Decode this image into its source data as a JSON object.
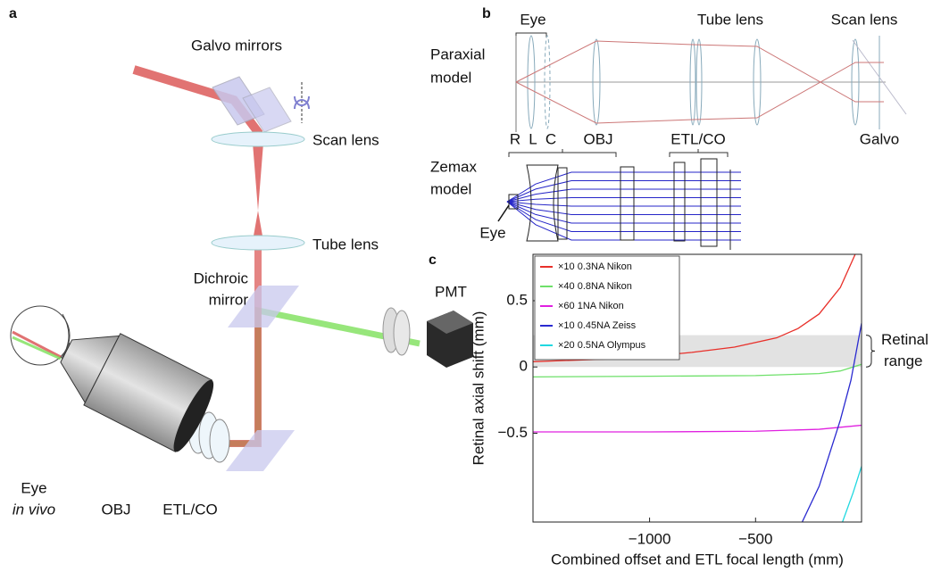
{
  "panel_a": {
    "label": "a",
    "galvo": "Galvo mirrors",
    "scan_lens": "Scan lens",
    "tube_lens": "Tube lens",
    "dichroic": [
      "Dichroic",
      "mirror"
    ],
    "pmt": "PMT",
    "eye": "Eye",
    "in_vivo": "in vivo",
    "obj": "OBJ",
    "etl": "ETL/CO"
  },
  "panel_b": {
    "label": "b",
    "eye_top": "Eye",
    "tube_lens": "Tube lens",
    "scan_lens": "Scan lens",
    "paraxial": [
      "Paraxial",
      "model"
    ],
    "r": "R",
    "l": "L",
    "c": "C",
    "obj": "OBJ",
    "etl": "ETL/CO",
    "galvo": "Galvo",
    "zemax": [
      "Zemax",
      "model"
    ],
    "eye_bottom": "Eye"
  },
  "panel_c_label": "c",
  "chart_data": {
    "type": "line",
    "xlabel": "Combined offset and ETL focal length (mm)",
    "ylabel": "Retinal axial shift (mm)",
    "xlim": [
      -1550,
      0
    ],
    "ylim": [
      -1.17,
      0.85
    ],
    "xticks": [
      {
        "value": -1000,
        "label": "−1000"
      },
      {
        "value": -500,
        "label": "−500"
      }
    ],
    "yticks": [
      {
        "value": -0.5,
        "label": "−0.5"
      },
      0,
      0.5
    ],
    "legend": "upper left",
    "band": {
      "range": [
        0,
        0.24
      ],
      "color": "#e2e2e2",
      "label": [
        "Retinal",
        "range"
      ]
    },
    "series": [
      {
        "name": "×10 0.3NA Nikon",
        "color": "#e8302a",
        "x": [
          -1550,
          -1200,
          -1000,
          -800,
          -600,
          -400,
          -300,
          -200,
          -100,
          -30
        ],
        "values": [
          0.04,
          0.06,
          0.08,
          0.11,
          0.15,
          0.22,
          0.29,
          0.4,
          0.6,
          0.85
        ]
      },
      {
        "name": "×40 0.8NA Nikon",
        "color": "#6ee06a",
        "x": [
          -1550,
          -1000,
          -500,
          -200,
          -100,
          0
        ],
        "values": [
          -0.075,
          -0.07,
          -0.065,
          -0.05,
          -0.03,
          0.02
        ]
      },
      {
        "name": "×60 1NA Nikon",
        "color": "#e020e0",
        "x": [
          -1550,
          -1000,
          -500,
          -200,
          0
        ],
        "values": [
          -0.49,
          -0.49,
          -0.485,
          -0.47,
          -0.44
        ]
      },
      {
        "name": "×10 0.45NA Zeiss",
        "color": "#2a2ad0",
        "x": [
          -280,
          -200,
          -100,
          -50,
          0
        ],
        "values": [
          -1.17,
          -0.9,
          -0.4,
          -0.1,
          0.33
        ]
      },
      {
        "name": "×20 0.5NA Olympus",
        "color": "#20d8e0",
        "x": [
          -90,
          -40,
          0
        ],
        "values": [
          -1.17,
          -0.95,
          -0.75
        ]
      }
    ]
  }
}
